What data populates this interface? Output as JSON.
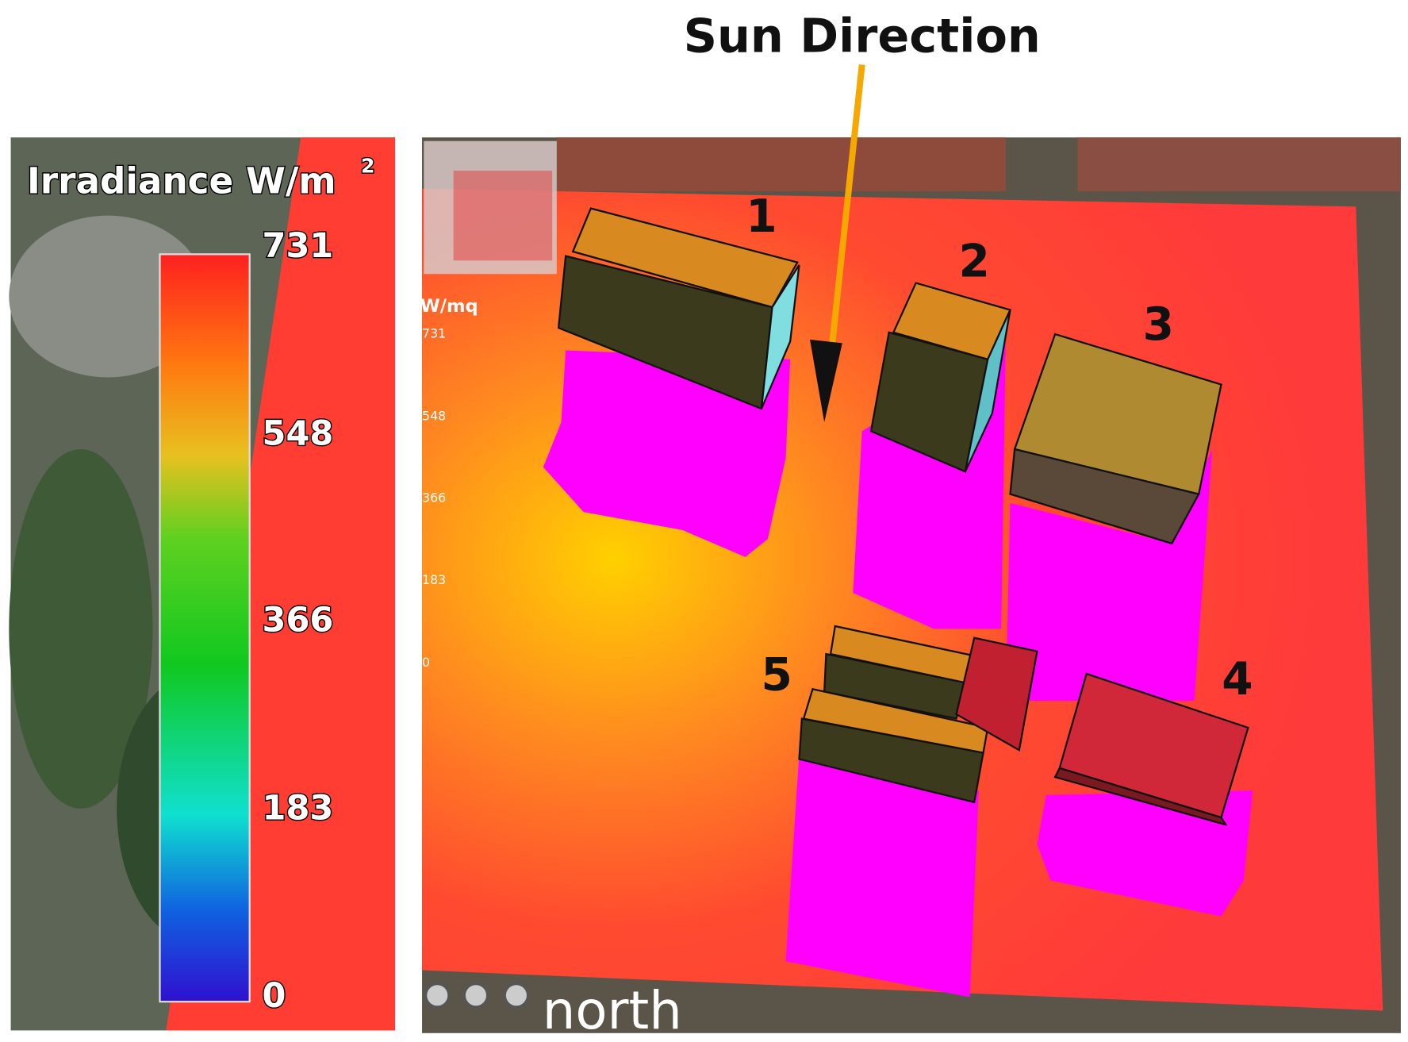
{
  "title": "Sun Direction",
  "legend": {
    "title": "Irradiance W/m",
    "superscript": "2",
    "ticks": [
      731,
      548,
      366,
      183,
      0
    ]
  },
  "map": {
    "legend": {
      "title": "W/mq",
      "ticks": [
        731,
        548,
        366,
        183,
        0
      ]
    },
    "labels": [
      "1",
      "2",
      "3",
      "4",
      "5"
    ],
    "caption": "north"
  }
}
